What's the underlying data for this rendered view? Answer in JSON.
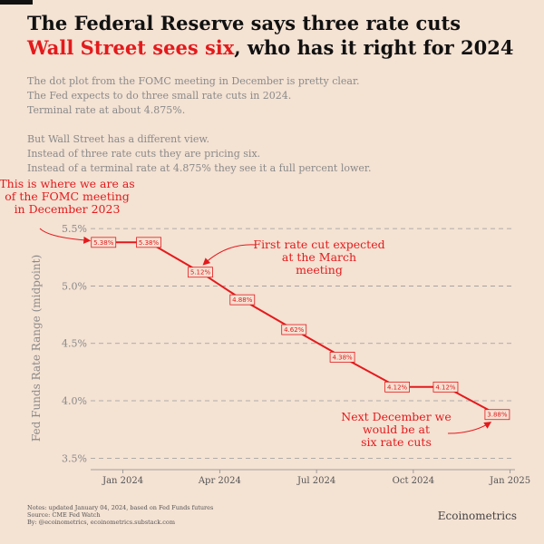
{
  "title": {
    "line1": "The Federal Reserve says three rate cuts",
    "line2_red": "Wall Street sees six",
    "line2_rest": ", who has it right for 2024"
  },
  "intro": {
    "p1": [
      "The dot plot from the FOMC meeting in December is pretty clear.",
      "The Fed expects to do three small rate cuts in 2024.",
      "Terminal rate at about 4.875%."
    ],
    "p2": [
      "But Wall Street has a different view.",
      "Instead of three rate cuts they are pricing six.",
      "Instead of a terminal rate at 4.875% they see it a full percent lower."
    ]
  },
  "chart_data": {
    "type": "line",
    "ylabel": "Fed Funds Rate Range (midpoint)",
    "yticks": [
      "3.5%",
      "4.0%",
      "4.5%",
      "5.0%",
      "5.5%"
    ],
    "ytick_values": [
      3.5,
      4.0,
      4.5,
      5.0,
      5.5
    ],
    "ylim": [
      3.4,
      5.58
    ],
    "xticks": [
      "Jan 2024",
      "Apr 2024",
      "Jul 2024",
      "Oct 2024",
      "Jan 2025"
    ],
    "xtick_values": [
      0,
      3,
      6,
      9,
      12
    ],
    "xlim": [
      -1.0,
      12.6
    ],
    "grid": "horizontal-dashed",
    "series_color": "#e31a1c",
    "points": [
      {
        "x": -0.6,
        "y": 5.38,
        "label": "5.38%"
      },
      {
        "x": 0.8,
        "y": 5.38,
        "label": "5.38%"
      },
      {
        "x": 2.4,
        "y": 5.12,
        "label": "5.12%"
      },
      {
        "x": 3.7,
        "y": 4.88,
        "label": "4.88%"
      },
      {
        "x": 5.3,
        "y": 4.62,
        "label": "4.62%"
      },
      {
        "x": 6.8,
        "y": 4.38,
        "label": "4.38%"
      },
      {
        "x": 8.5,
        "y": 4.12,
        "label": "4.12%"
      },
      {
        "x": 10.0,
        "y": 4.12,
        "label": "4.12%"
      },
      {
        "x": 11.6,
        "y": 3.88,
        "label": "3.88%"
      }
    ],
    "annotations": [
      {
        "lines": [
          "This is where we are as",
          "of the FOMC meeting",
          "in December 2023"
        ]
      },
      {
        "lines": [
          "First rate cut expected",
          "at the March",
          "meeting"
        ]
      },
      {
        "lines": [
          "Next December we",
          "would be at",
          "six rate cuts"
        ]
      }
    ]
  },
  "notes": [
    "Notes: updated January 04, 2024, based on Fed Funds futures",
    "Source: CME Fed Watch",
    "By: @ecoinometrics, ecoinometrics.substack.com"
  ],
  "brand": "Ecoinometrics"
}
